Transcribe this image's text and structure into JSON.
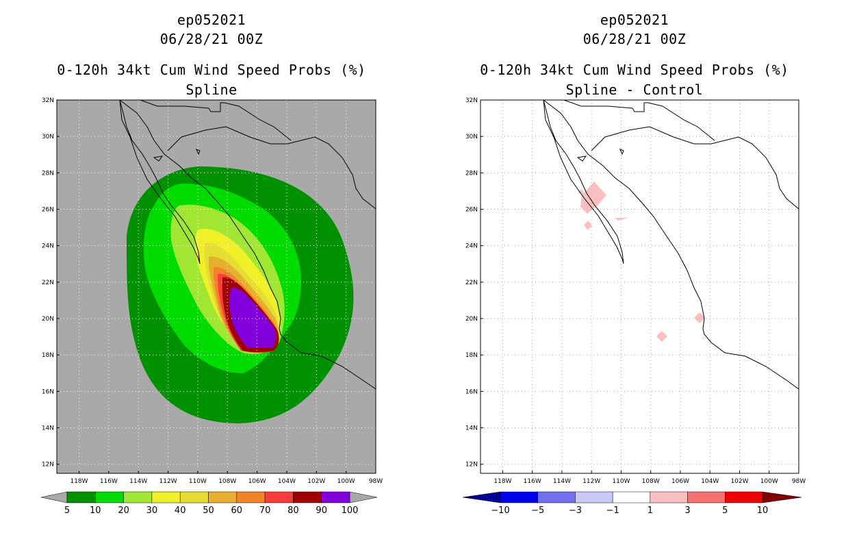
{
  "chart_data": [
    {
      "type": "heatmap",
      "storm_id": "ep052021",
      "datetime": "06/28/21 00Z",
      "title": "0-120h 34kt Cum Wind Speed Probs (%)",
      "subtitle": "Spline",
      "x_ticks": [
        "118W",
        "116W",
        "114W",
        "112W",
        "110W",
        "108W",
        "106W",
        "104W",
        "102W",
        "100W",
        "98W"
      ],
      "y_ticks": [
        "32N",
        "30N",
        "28N",
        "26N",
        "24N",
        "22N",
        "20N",
        "18N",
        "16N",
        "14N",
        "12N"
      ],
      "lon_range": [
        -119.5,
        -98
      ],
      "lat_range": [
        11.5,
        32
      ],
      "colorbar": {
        "labels": [
          "5",
          "10",
          "20",
          "30",
          "40",
          "50",
          "60",
          "70",
          "80",
          "90",
          "100"
        ],
        "colors": [
          "#009100",
          "#00dc00",
          "#a0e632",
          "#f0f028",
          "#e6dc32",
          "#e6af2d",
          "#f08228",
          "#fa3c3c",
          "#a00000",
          "#8200dc"
        ]
      },
      "colors": {
        "background": "#a9a9a9"
      }
    },
    {
      "type": "heatmap",
      "storm_id": "ep052021",
      "datetime": "06/28/21 00Z",
      "title": "0-120h 34kt Cum Wind Speed Probs (%)",
      "subtitle": "Spline - Control",
      "x_ticks": [
        "118W",
        "116W",
        "114W",
        "112W",
        "110W",
        "108W",
        "106W",
        "104W",
        "102W",
        "100W",
        "98W"
      ],
      "y_ticks": [
        "32N",
        "30N",
        "28N",
        "26N",
        "24N",
        "22N",
        "20N",
        "18N",
        "16N",
        "14N",
        "12N"
      ],
      "lon_range": [
        -119.5,
        -98
      ],
      "lat_range": [
        11.5,
        32
      ],
      "colorbar": {
        "labels": [
          "−10",
          "−5",
          "−3",
          "−1",
          "1",
          "3",
          "5",
          "10"
        ],
        "colors": [
          "#000096",
          "#0000f0",
          "#7070f0",
          "#c8c8fa",
          "#ffffff",
          "#fac0c0",
          "#f87070",
          "#f00000",
          "#800000"
        ]
      },
      "colors": {
        "background": "#ffffff",
        "positive_diff": "#fac0c0"
      }
    }
  ]
}
